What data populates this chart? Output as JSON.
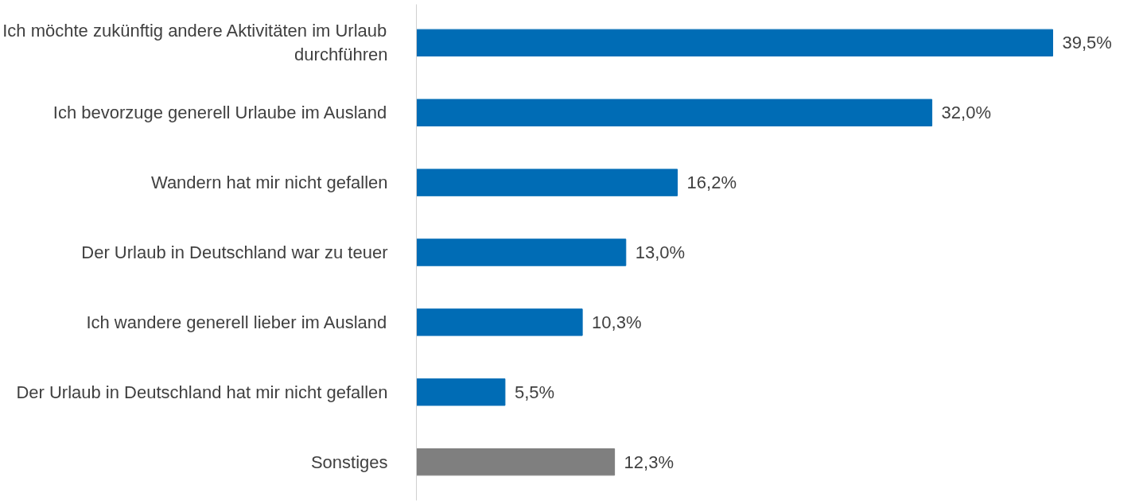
{
  "chart_data": {
    "type": "bar",
    "orientation": "horizontal",
    "categories": [
      "Ich möchte zukünftig andere Aktivitäten im Urlaub durchführen",
      "Ich bevorzuge generell Urlaube im Ausland",
      "Wandern hat mir nicht gefallen",
      "Der Urlaub in Deutschland war zu teuer",
      "Ich wandere generell lieber im Ausland",
      "Der Urlaub in Deutschland hat mir nicht gefallen",
      "Sonstiges"
    ],
    "values": [
      39.5,
      32.0,
      16.2,
      13.0,
      10.3,
      5.5,
      12.3
    ],
    "colors": [
      "#006cb5",
      "#006cb5",
      "#006cb5",
      "#006cb5",
      "#006cb5",
      "#006cb5",
      "#7f7f7f"
    ],
    "value_labels": [
      "39,5%",
      "32,0%",
      "16,2%",
      "13,0%",
      "10,3%",
      "5,5%",
      "12,3%"
    ],
    "grid": false
  }
}
